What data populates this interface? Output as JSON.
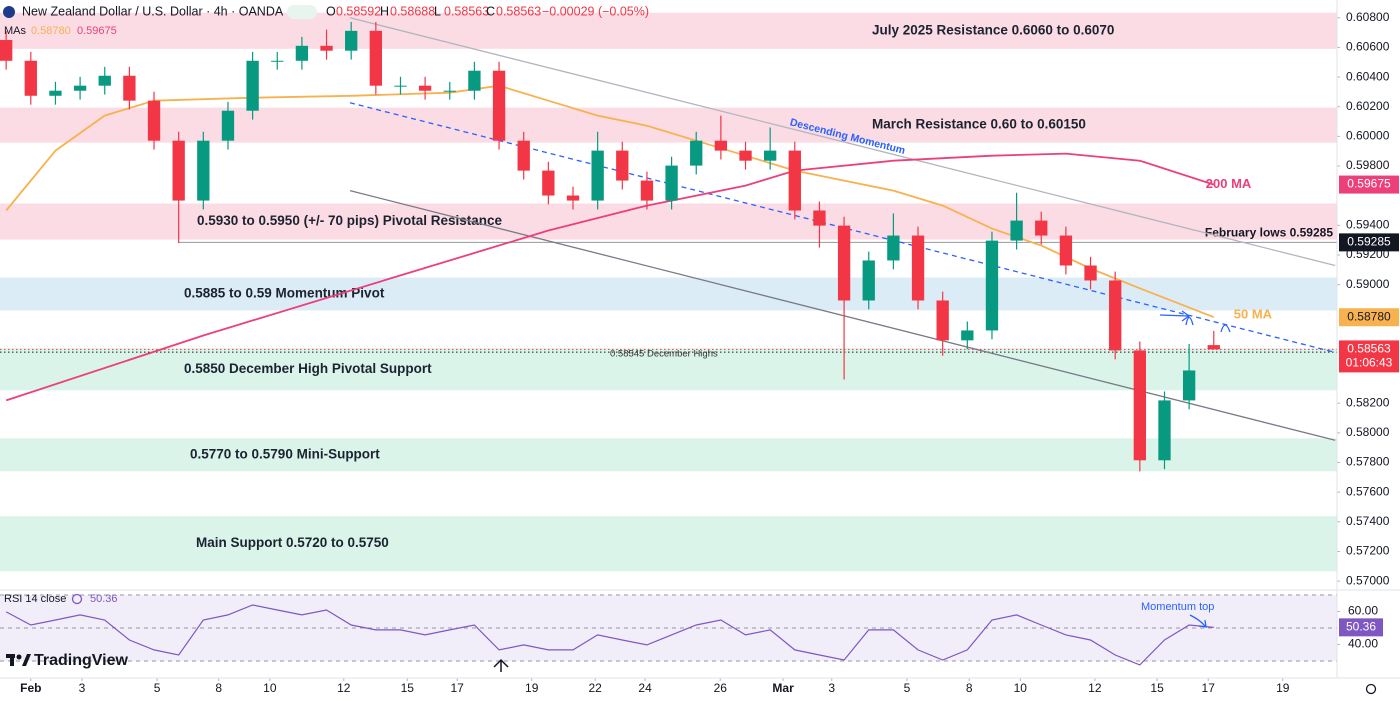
{
  "chart_data": [
    {
      "type": "candlestick",
      "title": "New Zealand Dollar / U.S. Dollar · 4h · OANDA",
      "ohlc_labels": [
        "O",
        "H",
        "L",
        "C"
      ],
      "change": "−0.00029 (−0.05%)",
      "ma_legend": "MAs",
      "up_color": "#089981",
      "down_color": "#f23645",
      "xlim": [
        -1,
        216
      ],
      "ylim": [
        0.5694,
        0.6092
      ],
      "x": [
        0,
        4,
        8,
        12,
        16,
        20,
        24,
        28,
        32,
        36,
        40,
        44,
        48,
        52,
        56,
        60,
        64,
        68,
        72,
        76,
        80,
        84,
        88,
        92,
        96,
        100,
        104,
        108,
        112,
        116,
        120,
        124,
        128,
        132,
        136,
        140,
        144,
        148,
        152,
        156,
        160,
        164,
        168,
        172,
        176,
        180,
        184,
        188,
        192,
        196
      ],
      "open": [
        0.6065,
        0.6051,
        0.60274,
        0.60308,
        0.60342,
        0.60409,
        0.60241,
        0.59971,
        0.59567,
        0.59971,
        0.60173,
        0.6051,
        0.6051,
        0.60611,
        0.60578,
        0.60712,
        0.60342,
        0.60342,
        0.60308,
        0.60308,
        0.60443,
        0.59971,
        0.59769,
        0.59601,
        0.59567,
        0.59904,
        0.59702,
        0.59567,
        0.59803,
        0.59971,
        0.59904,
        0.59836,
        0.59904,
        0.595,
        0.59398,
        0.58893,
        0.59163,
        0.59331,
        0.58893,
        0.58624,
        0.58691,
        0.59297,
        0.59432,
        0.59331,
        0.59129,
        0.59028,
        0.58556,
        0.57815,
        0.58219,
        0.58592
      ],
      "high": [
        0.6071,
        0.6057,
        0.60368,
        0.60402,
        0.60469,
        0.60469,
        0.60301,
        0.60031,
        0.60031,
        0.60233,
        0.6057,
        0.6057,
        0.60671,
        0.6072,
        0.60772,
        0.60772,
        0.60402,
        0.60402,
        0.60368,
        0.60503,
        0.60503,
        0.60031,
        0.59829,
        0.59661,
        0.60031,
        0.59964,
        0.59762,
        0.59863,
        0.60031,
        0.6014,
        0.59964,
        0.6006,
        0.59964,
        0.5956,
        0.59458,
        0.59223,
        0.5948,
        0.59391,
        0.58953,
        0.58751,
        0.59357,
        0.5962,
        0.59492,
        0.59391,
        0.59188,
        0.59088,
        0.58616,
        0.58279,
        0.586,
        0.58688
      ],
      "low": [
        0.6045,
        0.60214,
        0.60214,
        0.60248,
        0.60282,
        0.60181,
        0.59911,
        0.5928,
        0.59507,
        0.59911,
        0.60113,
        0.6045,
        0.6045,
        0.60518,
        0.60518,
        0.60282,
        0.60282,
        0.60248,
        0.60248,
        0.60248,
        0.59911,
        0.59709,
        0.59541,
        0.59507,
        0.59507,
        0.59642,
        0.59507,
        0.59507,
        0.59743,
        0.59844,
        0.59776,
        0.59776,
        0.5944,
        0.5925,
        0.5836,
        0.58833,
        0.59103,
        0.58833,
        0.5852,
        0.58564,
        0.58631,
        0.59237,
        0.59271,
        0.59069,
        0.58968,
        0.58496,
        0.5774,
        0.57755,
        0.58159,
        0.58563
      ],
      "close": [
        0.6051,
        0.60274,
        0.60308,
        0.60342,
        0.60409,
        0.60241,
        0.59971,
        0.59567,
        0.59971,
        0.60173,
        0.6051,
        0.6051,
        0.60611,
        0.60578,
        0.60712,
        0.60342,
        0.60342,
        0.60308,
        0.60308,
        0.60443,
        0.59971,
        0.59769,
        0.59601,
        0.59567,
        0.59904,
        0.59702,
        0.59567,
        0.59803,
        0.59971,
        0.59904,
        0.59836,
        0.59904,
        0.595,
        0.59398,
        0.58893,
        0.59163,
        0.59331,
        0.58893,
        0.58624,
        0.58691,
        0.59297,
        0.59432,
        0.59331,
        0.59129,
        0.59028,
        0.58556,
        0.57815,
        0.58219,
        0.58421,
        0.58563
      ],
      "countdown": "01:06:43",
      "lines": [
        {
          "label": "50 MA",
          "last_label": "0.58780",
          "color": "#f7b24f",
          "x": [
            0,
            8,
            16,
            24,
            40,
            56,
            72,
            80,
            88,
            96,
            104,
            112,
            120,
            128,
            136,
            144,
            152,
            160,
            168,
            176,
            184,
            196
          ],
          "values": [
            0.595,
            0.59904,
            0.6014,
            0.60241,
            0.60261,
            0.60274,
            0.60295,
            0.60342,
            0.60241,
            0.6014,
            0.60072,
            0.59971,
            0.5987,
            0.59769,
            0.59702,
            0.59634,
            0.59533,
            0.59378,
            0.59264,
            0.59109,
            0.58975,
            0.5878
          ]
        },
        {
          "label": "200 MA",
          "color": "#ec407a",
          "x": [
            0,
            32,
            64,
            88,
            104,
            120,
            128,
            144,
            160,
            172,
            184,
            196
          ],
          "values": [
            0.58219,
            0.58657,
            0.59062,
            0.59365,
            0.59533,
            0.59668,
            0.59769,
            0.59836,
            0.5987,
            0.59884,
            0.59836,
            0.59675
          ]
        }
      ],
      "zones": [
        {
          "label": "July 2025 Resistance 0.6060 to 0.6070",
          "low": 0.60591,
          "high": 0.60834,
          "color": "#fbdbe4"
        },
        {
          "label": "March Resistance 0.60 to 0.60150",
          "low": 0.59958,
          "high": 0.60194,
          "color": "#fbdbe4"
        },
        {
          "label": "0.5930 to 0.5950 (+/- 70 pips) Pivotal Resistance",
          "low": 0.59304,
          "high": 0.59547,
          "color": "#fbdbe4"
        },
        {
          "label": "0.5885 to 0.59 Momentum Pivot",
          "low": 0.58826,
          "high": 0.59048,
          "color": "#dcecf6"
        },
        {
          "label": "0.5850 December High Pivotal Support",
          "low": 0.58287,
          "high": 0.5857,
          "color": "#daf4ea"
        },
        {
          "label": "0.5770 to 0.5790 Mini-Support",
          "low": 0.57741,
          "high": 0.57963,
          "color": "#daf4ea"
        },
        {
          "label": "Main Support 0.5720 to 0.5750",
          "low": 0.57067,
          "high": 0.57438,
          "color": "#daf4ea"
        }
      ],
      "trendlines": [
        {
          "label": "Descending Momentum",
          "x": [
            55.8,
            215.7
          ],
          "values": [
            0.608,
            0.59129
          ],
          "color": "#b2b5be",
          "label_color": "#2962ff",
          "style": "solid"
        },
        {
          "x": [
            55.8,
            215.7
          ],
          "values": [
            0.59634,
            0.5795
          ],
          "color": "#787b86",
          "style": "solid"
        },
        {
          "x": [
            55.8,
            215.7
          ],
          "values": [
            0.60227,
            0.58543
          ],
          "color": "#2962ff",
          "style": "dashed"
        }
      ],
      "hlines": [
        {
          "label": "February lows 0.59285",
          "value": 0.59285,
          "x_start": 28,
          "color": "#9598a1",
          "style": "solid"
        },
        {
          "label": "0.58545 December Highs",
          "value": 0.58545,
          "x_start": -1,
          "color": "#131722",
          "style": "dotted"
        }
      ],
      "yticks": [
        {
          "value": 0.608,
          "label": "0.60800"
        },
        {
          "value": 0.606,
          "label": "0.60600"
        },
        {
          "value": 0.604,
          "label": "0.60400"
        },
        {
          "value": 0.602,
          "label": "0.60200"
        },
        {
          "value": 0.6,
          "label": "0.60000"
        },
        {
          "value": 0.598,
          "label": "0.59800"
        },
        {
          "value": 0.594,
          "label": "0.59400"
        },
        {
          "value": 0.592,
          "label": "0.59200"
        },
        {
          "value": 0.59,
          "label": "0.59000"
        },
        {
          "value": 0.582,
          "label": "0.58200"
        },
        {
          "value": 0.58,
          "label": "0.58000"
        },
        {
          "value": 0.578,
          "label": "0.57800"
        },
        {
          "value": 0.576,
          "label": "0.57600"
        },
        {
          "value": 0.574,
          "label": "0.57400"
        },
        {
          "value": 0.572,
          "label": "0.57200"
        },
        {
          "value": 0.57,
          "label": "0.57000"
        }
      ],
      "xticks": [
        {
          "value": 4,
          "label": "Feb"
        },
        {
          "value": 12.3,
          "label": "3"
        },
        {
          "value": 24.5,
          "label": "5"
        },
        {
          "value": 34.5,
          "label": "8"
        },
        {
          "value": 42.8,
          "label": "10"
        },
        {
          "value": 54.8,
          "label": "12"
        },
        {
          "value": 65.1,
          "label": "15"
        },
        {
          "value": 73.2,
          "label": "17"
        },
        {
          "value": 85.3,
          "label": "19"
        },
        {
          "value": 95.6,
          "label": "22"
        },
        {
          "value": 103.7,
          "label": "24"
        },
        {
          "value": 115.9,
          "label": "26"
        },
        {
          "value": 126.1,
          "label": "Mar"
        },
        {
          "value": 134,
          "label": "3"
        },
        {
          "value": 146.2,
          "label": "5"
        },
        {
          "value": 156.3,
          "label": "8"
        },
        {
          "value": 164.6,
          "label": "10"
        },
        {
          "value": 176.7,
          "label": "12"
        },
        {
          "value": 186.8,
          "label": "15"
        },
        {
          "value": 195.1,
          "label": "17"
        },
        {
          "value": 207.2,
          "label": "19"
        }
      ]
    },
    {
      "type": "line",
      "title": "RSI 14 close",
      "color": "#7e57c2",
      "xlim": [
        -1,
        216
      ],
      "ylim": [
        23.3,
        73
      ],
      "bands": [
        70,
        50,
        30
      ],
      "annotation": "Momentum top",
      "x": [
        0,
        4,
        8,
        12,
        16,
        20,
        24,
        28,
        32,
        36,
        40,
        44,
        48,
        52,
        56,
        60,
        64,
        68,
        72,
        76,
        80,
        84,
        88,
        92,
        96,
        100,
        104,
        108,
        112,
        116,
        120,
        124,
        128,
        132,
        136,
        140,
        144,
        148,
        152,
        156,
        160,
        164,
        168,
        172,
        176,
        180,
        184,
        188,
        192,
        196
      ],
      "values": [
        59.7,
        51.8,
        54.8,
        57.9,
        54.8,
        42.7,
        36.7,
        33.6,
        54.8,
        57.9,
        63.9,
        60.9,
        57.9,
        60.9,
        51.8,
        48.8,
        48.8,
        45.8,
        48.8,
        51.8,
        36.7,
        39.7,
        36.7,
        36.7,
        45.8,
        42.7,
        39.7,
        45.8,
        51.8,
        54.8,
        45.8,
        48.8,
        36.7,
        33.6,
        30.6,
        48.8,
        48.8,
        36.7,
        30.6,
        36.7,
        54.8,
        57.9,
        51.8,
        45.8,
        42.7,
        33.6,
        27.6,
        42.7,
        51.8,
        50.36
      ],
      "yticks": [
        {
          "value": 60,
          "label": "60.00"
        },
        {
          "value": 40,
          "label": "40.00"
        }
      ]
    }
  ],
  "brand": "TradingView"
}
